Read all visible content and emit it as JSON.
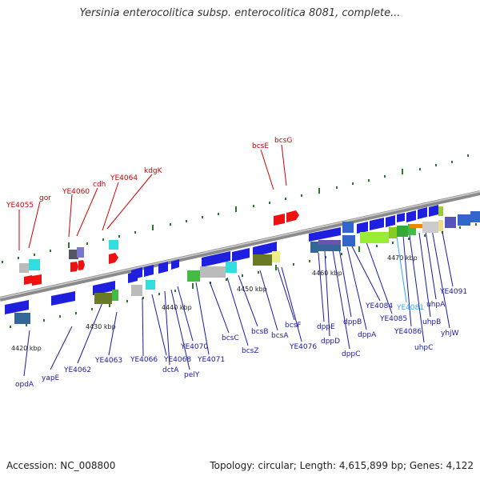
{
  "title": "Yersinia enterocolitica subsp. enterocolitica 8081, complete...",
  "footer": {
    "accession": "Accession: NC_008800",
    "info": "Topology: circular; Length: 4,615,899 bp; Genes: 4,122"
  },
  "scale_labels": [
    "4420 kbp",
    "4430 kbp",
    "4440 kbp",
    "4450 kbp",
    "4460 kbp",
    "4470 kbp"
  ],
  "genes_top": [
    "YE4055",
    "gor",
    "YE4060",
    "cdh",
    "YE4064",
    "kdgK",
    "bcsE",
    "bcsG"
  ],
  "genes_bottom": [
    "opdA",
    "yapE",
    "YE4062",
    "YE4063",
    "YE4066",
    "YE4068",
    "dctA",
    "pelY",
    "YE4070",
    "YE4071",
    "bcsC",
    "bcsZ",
    "bcsB",
    "bcsA",
    "bcsF",
    "YE4076",
    "dppE",
    "dppD",
    "dppC",
    "dppB",
    "dppA",
    "YE4084",
    "YE4085",
    "YE4081",
    "YE4086",
    "uhpC",
    "uhpB",
    "uhpA",
    "yhjW",
    "YE4091"
  ],
  "colors": {
    "top_label": "#cc0000",
    "bottom_label": "#1a1aa0",
    "highlight_label": "#33aaff",
    "gene_blue": "#1f1fe0",
    "gene_red": "#ee1111"
  }
}
